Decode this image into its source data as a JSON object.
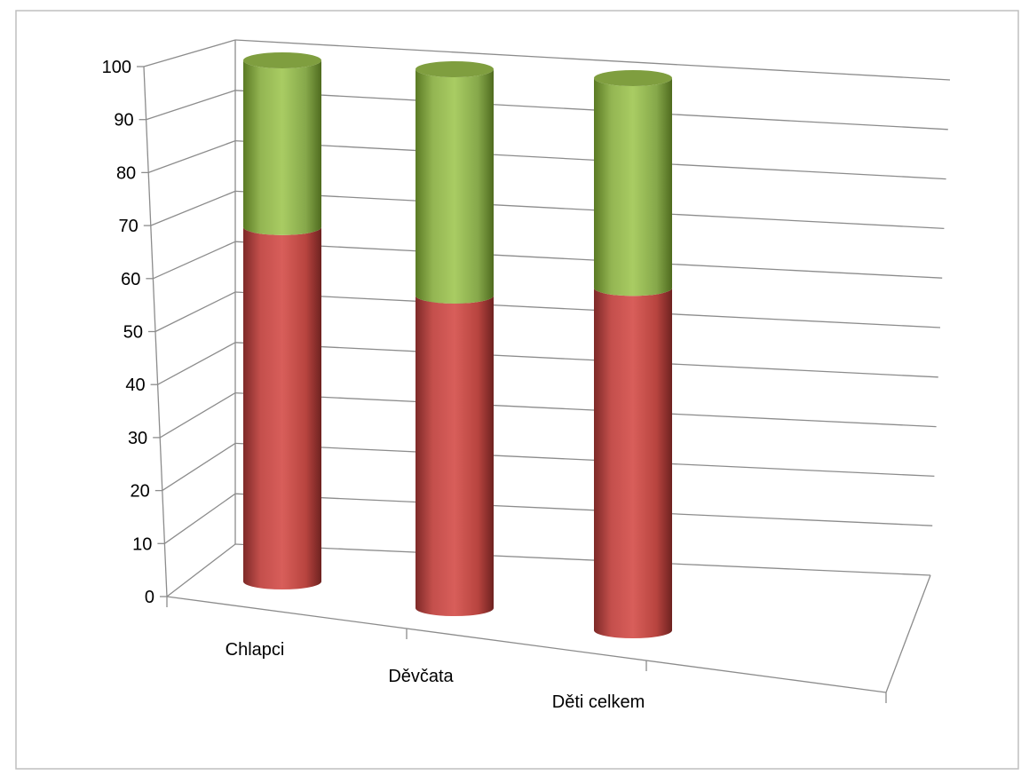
{
  "chart_data": {
    "type": "bar",
    "subtype": "stacked-3d-cylinder",
    "title": "",
    "xlabel": "",
    "ylabel": "",
    "ylim": [
      0,
      100
    ],
    "y_ticks": [
      0,
      10,
      20,
      30,
      40,
      50,
      60,
      70,
      80,
      90,
      100
    ],
    "categories": [
      "Chlapci",
      "Děvčata",
      "Děti celkem"
    ],
    "series": [
      {
        "values": [
          68,
          58,
          62
        ],
        "color": "#C0504D"
      },
      {
        "values": [
          32,
          42,
          38
        ],
        "color": "#9BBB59"
      }
    ],
    "grid": true,
    "legend": "none"
  }
}
